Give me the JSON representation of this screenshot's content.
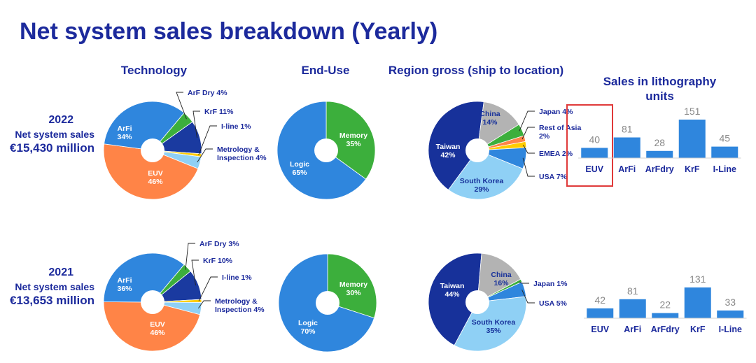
{
  "title": "Net system sales breakdown (Yearly)",
  "headers": {
    "technology": "Technology",
    "end_use": "End-Use",
    "region": "Region gross (ship to location)",
    "units_line1": "Sales in lithography",
    "units_line2": "units"
  },
  "rows": [
    {
      "year": "2022",
      "sales_label": "Net system sales",
      "sales_value": "€15,430 million"
    },
    {
      "year": "2021",
      "sales_label": "Net system sales",
      "sales_value": "€13,653 million"
    }
  ],
  "colors": {
    "title": "#1c2a9c",
    "euv": "#ff8447",
    "arfi": "#2f86dd",
    "arfdry": "#3caf3c",
    "krf": "#1a3aa0",
    "iline": "#ffcc00",
    "metrology": "#8fd0f5",
    "logic": "#2f86dd",
    "memory": "#3caf3c",
    "taiwan": "#17319a",
    "china": "#b3b3b3",
    "japan": "#3caf3c",
    "rest_of_asia": "#ff8447",
    "emea": "#ffcc00",
    "usa": "#2f86dd",
    "south_korea": "#8fd0f5",
    "bar": "#2f86dd",
    "highlight": "#e03a3a"
  },
  "chart_data": [
    {
      "type": "pie",
      "chart": "technology",
      "year": "2022",
      "slices": [
        {
          "name": "ArF Dry",
          "label": "ArF Dry 4%",
          "value": 4,
          "color": "#3caf3c"
        },
        {
          "name": "KrF",
          "label": "KrF 11%",
          "value": 11,
          "color": "#1a3aa0"
        },
        {
          "name": "I-line",
          "label": "I-line 1%",
          "value": 1,
          "color": "#ffcc00"
        },
        {
          "name": "Metrology & Inspection",
          "label": "Metrology & Inspection 4%",
          "value": 4,
          "color": "#8fd0f5"
        },
        {
          "name": "EUV",
          "label": "EUV 46%",
          "value": 46,
          "color": "#ff8447"
        },
        {
          "name": "ArFi",
          "label": "ArFi 34%",
          "value": 34,
          "color": "#2f86dd"
        }
      ]
    },
    {
      "type": "pie",
      "chart": "end-use",
      "year": "2022",
      "slices": [
        {
          "name": "Memory",
          "label": "Memory 35%",
          "value": 35,
          "color": "#3caf3c"
        },
        {
          "name": "Logic",
          "label": "Logic 65%",
          "value": 65,
          "color": "#2f86dd"
        }
      ]
    },
    {
      "type": "pie",
      "chart": "region",
      "year": "2022",
      "slices": [
        {
          "name": "Japan",
          "label": "Japan 4%",
          "value": 4,
          "color": "#3caf3c"
        },
        {
          "name": "Rest of Asia",
          "label": "Rest of Asia 2%",
          "value": 2,
          "color": "#ff8447"
        },
        {
          "name": "EMEA",
          "label": "EMEA 2%",
          "value": 2,
          "color": "#ffcc00"
        },
        {
          "name": "USA",
          "label": "USA 7%",
          "value": 7,
          "color": "#2f86dd"
        },
        {
          "name": "South Korea",
          "label": "South Korea 29%",
          "value": 29,
          "color": "#8fd0f5"
        },
        {
          "name": "Taiwan",
          "label": "Taiwan 42%",
          "value": 42,
          "color": "#17319a"
        },
        {
          "name": "China",
          "label": "China 14%",
          "value": 14,
          "color": "#b3b3b3"
        }
      ]
    },
    {
      "type": "bar",
      "chart": "lithography units",
      "year": "2022",
      "categories": [
        "EUV",
        "ArFi",
        "ArFdry",
        "KrF",
        "I-Line"
      ],
      "values": [
        40,
        81,
        28,
        151,
        45
      ],
      "highlight": "EUV"
    },
    {
      "type": "pie",
      "chart": "technology",
      "year": "2021",
      "slices": [
        {
          "name": "ArF Dry",
          "label": "ArF Dry 3%",
          "value": 3,
          "color": "#3caf3c"
        },
        {
          "name": "KrF",
          "label": "KrF 10%",
          "value": 10,
          "color": "#1a3aa0"
        },
        {
          "name": "I-line",
          "label": "I-line 1%",
          "value": 1,
          "color": "#ffcc00"
        },
        {
          "name": "Metrology & Inspection",
          "label": "Metrology & Inspection 4%",
          "value": 4,
          "color": "#8fd0f5"
        },
        {
          "name": "EUV",
          "label": "EUV 46%",
          "value": 46,
          "color": "#ff8447"
        },
        {
          "name": "ArFi",
          "label": "ArFi 36%",
          "value": 36,
          "color": "#2f86dd"
        }
      ]
    },
    {
      "type": "pie",
      "chart": "end-use",
      "year": "2021",
      "slices": [
        {
          "name": "Memory",
          "label": "Memory 30%",
          "value": 30,
          "color": "#3caf3c"
        },
        {
          "name": "Logic",
          "label": "Logic 70%",
          "value": 70,
          "color": "#2f86dd"
        }
      ]
    },
    {
      "type": "pie",
      "chart": "region",
      "year": "2021",
      "slices": [
        {
          "name": "Japan",
          "label": "Japan 1%",
          "value": 1,
          "color": "#3caf3c"
        },
        {
          "name": "USA",
          "label": "USA 5%",
          "value": 5,
          "color": "#2f86dd"
        },
        {
          "name": "South Korea",
          "label": "South Korea 35%",
          "value": 35,
          "color": "#8fd0f5"
        },
        {
          "name": "Taiwan",
          "label": "Taiwan 44%",
          "value": 44,
          "color": "#17319a"
        },
        {
          "name": "China",
          "label": "China 16%",
          "value": 16,
          "color": "#b3b3b3"
        }
      ]
    },
    {
      "type": "bar",
      "chart": "lithography units",
      "year": "2021",
      "categories": [
        "EUV",
        "ArFi",
        "ArFdry",
        "KrF",
        "I-Line"
      ],
      "values": [
        42,
        81,
        22,
        131,
        33
      ]
    }
  ]
}
